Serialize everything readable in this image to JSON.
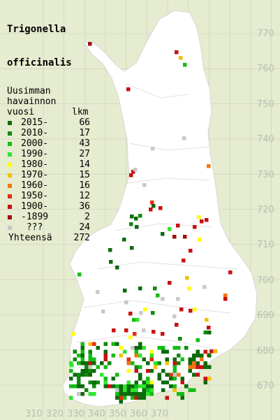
{
  "map": {
    "title_lines": [
      "Trigonella",
      "officinalis"
    ],
    "background_color": "#e6eccf",
    "land_color": "#ffffff",
    "grid_color": "#c9ccc3",
    "y_ticks": [
      "770",
      "760",
      "750",
      "740",
      "730",
      "720",
      "710",
      "700",
      "690",
      "680",
      "670"
    ],
    "x_ticks": [
      "310",
      "320",
      "330",
      "340",
      "350",
      "360",
      "370"
    ]
  },
  "legend": {
    "heading_lines": [
      "Uusimman",
      "havainnon",
      "vuosi"
    ],
    "count_heading": "lkm",
    "rows": [
      {
        "label": "2015-",
        "count": "66",
        "color": "#0b6b0b"
      },
      {
        "label": "2010-",
        "count": "17",
        "color": "#0e8a0e"
      },
      {
        "label": "2000-",
        "count": "43",
        "color": "#14bd14"
      },
      {
        "label": "1990-",
        "count": "27",
        "color": "#2ee52e"
      },
      {
        "label": "1980-",
        "count": "14",
        "color": "#ffff00"
      },
      {
        "label": "1970-",
        "count": "15",
        "color": "#f3c10b"
      },
      {
        "label": "1960-",
        "count": "16",
        "color": "#f47410"
      },
      {
        "label": "1950-",
        "count": "12",
        "color": "#e62d12"
      },
      {
        "label": "1900-",
        "count": "36",
        "color": "#c81010"
      },
      {
        "label": "-1899",
        "count": "2",
        "color": "#a00f0f"
      },
      {
        "label": " ???",
        "count": "24",
        "color": "#c8c8c8"
      }
    ],
    "total_label": "Yhteensä",
    "total_count": "272"
  }
}
